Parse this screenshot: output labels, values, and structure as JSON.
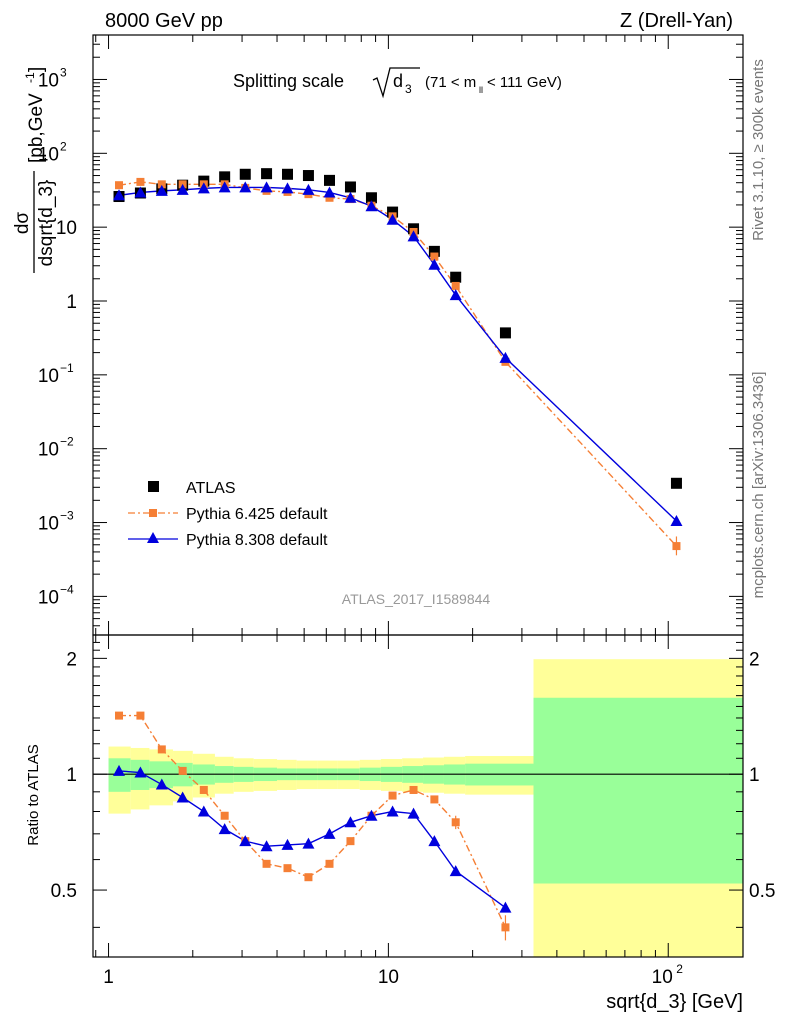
{
  "header": {
    "left": "8000 GeV pp",
    "right": "Z (Drell-Yan)"
  },
  "main_panel": {
    "title_prefix": "Splitting scale",
    "title_sqrt_arg": "d",
    "title_sqrt_sub": "3",
    "title_range_pre": "(71 < m",
    "title_range_sub": "ll",
    "title_range_post": " < 111 GeV)",
    "ylabel_num": "dσ",
    "ylabel_den": "dsqrt{d_3}",
    "ylabel_unit_pre": "[pb,GeV",
    "ylabel_unit_sup": "-1",
    "ylabel_unit_post": "]",
    "analysis_id": "ATLAS_2017_I1589844"
  },
  "ratio_panel": {
    "ylabel": "Ratio to ATLAS"
  },
  "xlabel": "sqrt{d_3} [GeV]",
  "side_text": {
    "rivet": "Rivet 3.1.10, ≥ 300k events",
    "mcplots": "mcplots.cern.ch [arXiv:1306.3436]"
  },
  "legend": [
    {
      "label": "ATLAS",
      "style": "square",
      "color": "#000000"
    },
    {
      "label": "Pythia 6.425 default",
      "style": "dashdot-square",
      "color": "#f57f35"
    },
    {
      "label": "Pythia 8.308 default",
      "style": "solid-triangle",
      "color": "#0000dd"
    }
  ],
  "chart_data": [
    {
      "type": "scatter",
      "title": "Splitting scale √d3 (71 < m_ll < 111 GeV)",
      "xlabel": "sqrt{d_3} [GeV]",
      "ylabel": "dσ/dsqrt{d_3} [pb,GeV^-1]",
      "xscale": "log",
      "yscale": "log",
      "xlim": [
        0.88,
        185
      ],
      "ylim": [
        3e-05,
        4000
      ],
      "x_ticks": [
        "1",
        "10",
        "10^2"
      ],
      "y_ticks": [
        "10^-4",
        "10^-3",
        "10^-2",
        "10^-1",
        "1",
        "10",
        "10^2",
        "10^3"
      ],
      "bin_edges": [
        1.0,
        1.2,
        1.4,
        1.7,
        2.0,
        2.4,
        2.8,
        3.3,
        4.0,
        4.7,
        5.6,
        6.6,
        7.9,
        9.4,
        11.2,
        13.3,
        15.8,
        18.8,
        33.0,
        185.0
      ],
      "series": [
        {
          "name": "ATLAS",
          "color": "#000000",
          "marker": "square",
          "x": [
            1.09,
            1.3,
            1.55,
            1.84,
            2.19,
            2.6,
            3.08,
            3.67,
            4.36,
            5.18,
            6.16,
            7.32,
            8.7,
            10.35,
            12.3,
            14.6,
            17.4,
            26.2,
            107.0
          ],
          "y": [
            26,
            29,
            33,
            37,
            42,
            48,
            52,
            53,
            52,
            50,
            43,
            35,
            25,
            16,
            9.5,
            4.7,
            2.1,
            0.37,
            0.0034
          ]
        },
        {
          "name": "Pythia 6.425 default",
          "color": "#f57f35",
          "marker": "square",
          "line": "dashdot",
          "x": [
            1.09,
            1.3,
            1.55,
            1.84,
            2.19,
            2.6,
            3.08,
            3.67,
            4.36,
            5.18,
            6.16,
            7.32,
            8.7,
            10.35,
            12.3,
            14.6,
            17.4,
            26.2,
            107.0
          ],
          "y": [
            37,
            41,
            38,
            38,
            38,
            38,
            34,
            31,
            30,
            28,
            25,
            24,
            19.5,
            14,
            8.6,
            4.0,
            1.6,
            0.15,
            0.00048
          ]
        },
        {
          "name": "Pythia 8.308 default",
          "color": "#0000dd",
          "marker": "triangle",
          "line": "solid",
          "x": [
            1.09,
            1.3,
            1.55,
            1.84,
            2.19,
            2.6,
            3.08,
            3.67,
            4.36,
            5.18,
            6.16,
            7.32,
            8.7,
            10.35,
            12.3,
            14.6,
            17.4,
            26.2,
            107.0
          ],
          "y": [
            27,
            29.5,
            31,
            32,
            33.5,
            34.5,
            34.5,
            34.5,
            33.5,
            32,
            29.5,
            25,
            19.2,
            12.6,
            7.5,
            3.1,
            1.2,
            0.17,
            0.00105
          ]
        }
      ]
    },
    {
      "type": "scatter",
      "ylabel": "Ratio to ATLAS",
      "xlabel": "sqrt{d_3} [GeV]",
      "xscale": "log",
      "xlim": [
        0.88,
        185
      ],
      "ylim": [
        0.335,
        2.3
      ],
      "y_ticks": [
        "0.5",
        "1",
        "2"
      ],
      "bands": {
        "edges": [
          1.0,
          1.2,
          1.4,
          1.7,
          2.0,
          2.4,
          2.8,
          3.3,
          4.0,
          4.7,
          5.6,
          6.6,
          7.9,
          9.4,
          11.2,
          13.3,
          15.8,
          18.8,
          33.0,
          185.0
        ],
        "stat_lower": [
          0.9,
          0.91,
          0.92,
          0.93,
          0.94,
          0.95,
          0.955,
          0.96,
          0.965,
          0.965,
          0.965,
          0.965,
          0.96,
          0.955,
          0.95,
          0.945,
          0.94,
          0.935,
          0.52
        ],
        "stat_upper": [
          1.1,
          1.09,
          1.08,
          1.07,
          1.06,
          1.05,
          1.045,
          1.04,
          1.035,
          1.035,
          1.035,
          1.035,
          1.04,
          1.045,
          1.05,
          1.055,
          1.06,
          1.065,
          1.58
        ],
        "total_lower": [
          0.79,
          0.81,
          0.83,
          0.85,
          0.87,
          0.89,
          0.9,
          0.905,
          0.91,
          0.915,
          0.915,
          0.915,
          0.91,
          0.905,
          0.9,
          0.895,
          0.89,
          0.885,
          0.33
        ],
        "total_upper": [
          1.18,
          1.17,
          1.16,
          1.15,
          1.13,
          1.11,
          1.1,
          1.095,
          1.09,
          1.085,
          1.085,
          1.085,
          1.09,
          1.095,
          1.1,
          1.105,
          1.11,
          1.115,
          1.99
        ],
        "stat_color": "#99ff99",
        "total_color": "#ffff99"
      },
      "series": [
        {
          "name": "Pythia 6.425 default",
          "color": "#f57f35",
          "x": [
            1.09,
            1.3,
            1.55,
            1.84,
            2.19,
            2.6,
            3.08,
            3.67,
            4.36,
            5.18,
            6.16,
            7.32,
            8.7,
            10.35,
            12.3,
            14.6,
            17.4,
            26.2
          ],
          "y": [
            1.42,
            1.42,
            1.16,
            1.02,
            0.91,
            0.78,
            0.67,
            0.585,
            0.57,
            0.54,
            0.585,
            0.67,
            0.78,
            0.88,
            0.91,
            0.86,
            0.75,
            0.4
          ],
          "yerr": [
            0.03,
            0.03,
            0.02,
            0.02,
            0.01,
            0.01,
            0.01,
            0.01,
            0.01,
            0.01,
            0.01,
            0.01,
            0.01,
            0.01,
            0.01,
            0.015,
            0.03,
            0.03
          ]
        },
        {
          "name": "Pythia 8.308 default",
          "color": "#0000dd",
          "x": [
            1.09,
            1.3,
            1.55,
            1.84,
            2.19,
            2.6,
            3.08,
            3.67,
            4.36,
            5.18,
            6.16,
            7.32,
            8.7,
            10.35,
            12.3,
            14.6,
            17.4,
            26.2
          ],
          "y": [
            1.02,
            1.01,
            0.94,
            0.87,
            0.8,
            0.72,
            0.67,
            0.65,
            0.655,
            0.66,
            0.7,
            0.75,
            0.78,
            0.8,
            0.79,
            0.67,
            0.56,
            0.45
          ]
        }
      ]
    }
  ]
}
